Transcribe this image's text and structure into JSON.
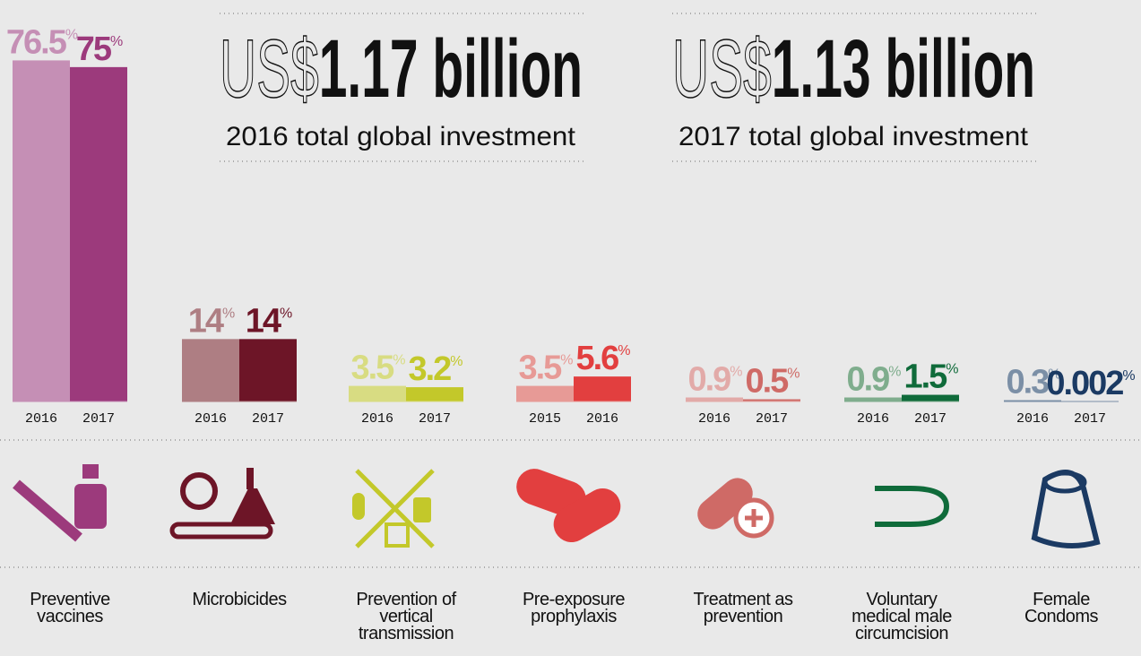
{
  "chart_data": {
    "type": "bar",
    "ylim": [
      0,
      80
    ],
    "groups": [
      {
        "name": "Preventive vaccines",
        "categories": [
          "2016",
          "2017"
        ],
        "values": [
          76.5,
          75
        ],
        "value_labels": [
          "76.5%",
          "75%"
        ],
        "colors": [
          "#c58fb5",
          "#9c3a7c"
        ]
      },
      {
        "name": "Microbicides",
        "categories": [
          "2016",
          "2017"
        ],
        "values": [
          14,
          14
        ],
        "value_labels": [
          "14%",
          "14%"
        ],
        "colors": [
          "#ae7e83",
          "#6d1527"
        ]
      },
      {
        "name": "Prevention of vertical transmission",
        "categories": [
          "2016",
          "2017"
        ],
        "values": [
          3.5,
          3.2
        ],
        "value_labels": [
          "3.5%",
          "3.2%"
        ],
        "colors": [
          "#d8dc82",
          "#c3c82a"
        ]
      },
      {
        "name": "Pre-exposure prophylaxis",
        "categories": [
          "2015",
          "2016"
        ],
        "values": [
          3.5,
          5.6
        ],
        "value_labels": [
          "3.5%",
          "5.6%"
        ],
        "colors": [
          "#e79a96",
          "#e23f3f"
        ]
      },
      {
        "name": "Treatment as prevention",
        "categories": [
          "2016",
          "2017"
        ],
        "values": [
          0.9,
          0.5
        ],
        "value_labels": [
          "0.9%",
          "0.5%"
        ],
        "colors": [
          "#e2aaa8",
          "#cf6a66"
        ]
      },
      {
        "name": "Voluntary medical male circumcision",
        "categories": [
          "2016",
          "2017"
        ],
        "values": [
          0.9,
          1.5
        ],
        "value_labels": [
          "0.9%",
          "1.5%"
        ],
        "colors": [
          "#7fad8d",
          "#0f6b3a"
        ]
      },
      {
        "name": "Female Condoms",
        "categories": [
          "2016",
          "2017"
        ],
        "values": [
          0.3,
          0.002
        ],
        "value_labels": [
          "0.3%",
          "0.002%"
        ],
        "colors": [
          "#7b8fa6",
          "#1b3a63"
        ]
      }
    ]
  },
  "headlines": [
    {
      "prefix": "US$",
      "amount": "1.17 billion",
      "caption": "2016 total global investment"
    },
    {
      "prefix": "US$",
      "amount": "1.13 billion",
      "caption": "2017 total global investment"
    }
  ]
}
